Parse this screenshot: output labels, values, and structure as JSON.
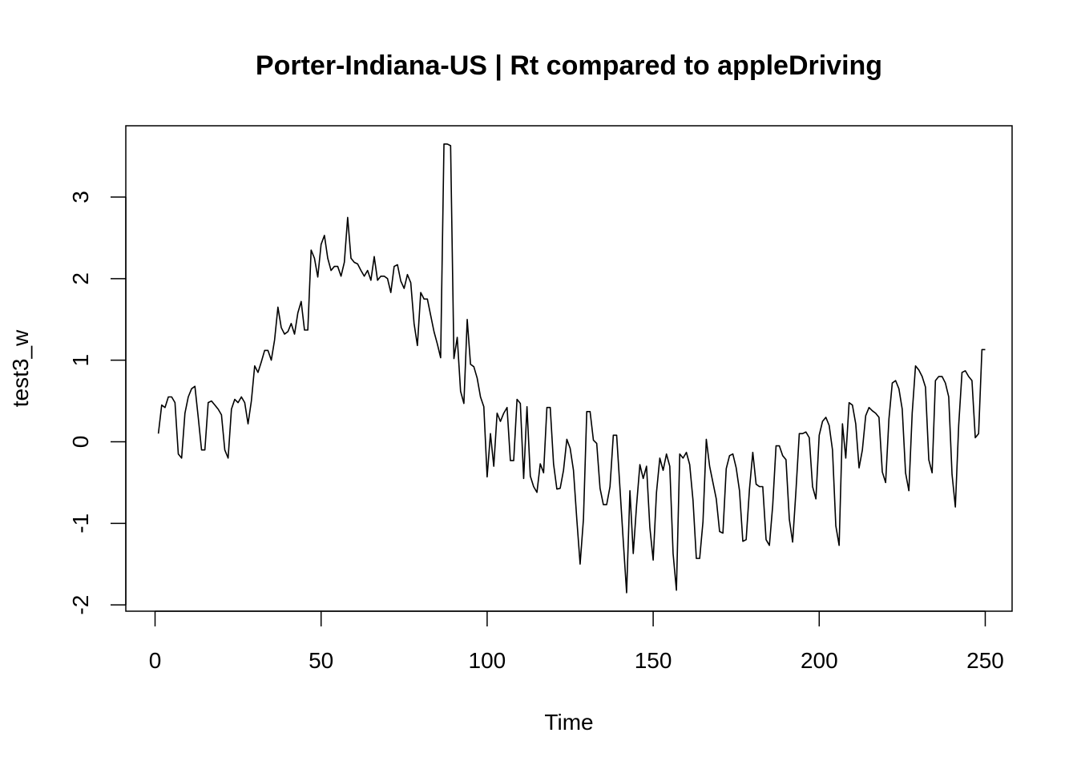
{
  "chart_data": {
    "type": "line",
    "title": "Porter-Indiana-US | Rt compared to appleDriving",
    "xlabel": "Time",
    "ylabel": "test3_w",
    "xlim": [
      1,
      248
    ],
    "ylim": [
      -1.85,
      3.65
    ],
    "x_ticks": [
      0,
      50,
      100,
      150,
      200,
      250
    ],
    "y_ticks": [
      -2,
      -1,
      0,
      1,
      2,
      3
    ],
    "grid": false,
    "legend": "none",
    "series": [
      {
        "color": "#000000",
        "x_start": 1,
        "x_step": 1,
        "values": [
          0.1,
          0.45,
          0.42,
          0.55,
          0.55,
          0.48,
          -0.15,
          -0.2,
          0.35,
          0.55,
          0.65,
          0.68,
          0.3,
          -0.1,
          -0.1,
          0.48,
          0.5,
          0.45,
          0.4,
          0.33,
          -0.1,
          -0.2,
          0.4,
          0.52,
          0.48,
          0.55,
          0.48,
          0.22,
          0.5,
          0.93,
          0.85,
          0.98,
          1.12,
          1.12,
          1.0,
          1.25,
          1.65,
          1.4,
          1.32,
          1.35,
          1.45,
          1.32,
          1.58,
          1.72,
          1.37,
          1.37,
          2.35,
          2.25,
          2.02,
          2.42,
          2.53,
          2.25,
          2.1,
          2.15,
          2.15,
          2.03,
          2.2,
          2.75,
          2.25,
          2.2,
          2.18,
          2.1,
          2.03,
          2.1,
          1.98,
          2.27,
          1.98,
          2.03,
          2.03,
          2.0,
          1.83,
          2.15,
          2.17,
          1.97,
          1.88,
          2.05,
          1.95,
          1.45,
          1.18,
          1.83,
          1.75,
          1.75,
          1.55,
          1.35,
          1.2,
          1.03,
          3.65,
          3.65,
          3.63,
          1.02,
          1.28,
          0.62,
          0.47,
          1.5,
          0.95,
          0.92,
          0.78,
          0.55,
          0.43,
          -0.43,
          0.1,
          -0.3,
          0.35,
          0.25,
          0.35,
          0.42,
          -0.23,
          -0.23,
          0.52,
          0.47,
          -0.45,
          0.43,
          -0.42,
          -0.55,
          -0.62,
          -0.27,
          -0.38,
          0.42,
          0.42,
          -0.27,
          -0.58,
          -0.57,
          -0.35,
          0.03,
          -0.08,
          -0.35,
          -0.95,
          -1.5,
          -0.95,
          0.37,
          0.37,
          0.02,
          -0.02,
          -0.57,
          -0.77,
          -0.77,
          -0.55,
          0.08,
          0.08,
          -0.57,
          -1.22,
          -1.85,
          -0.6,
          -1.37,
          -0.78,
          -0.28,
          -0.45,
          -0.3,
          -1.05,
          -1.45,
          -0.62,
          -0.2,
          -0.35,
          -0.15,
          -0.3,
          -1.37,
          -1.82,
          -0.15,
          -0.2,
          -0.13,
          -0.28,
          -0.72,
          -1.43,
          -1.43,
          -0.98,
          0.03,
          -0.3,
          -0.5,
          -0.7,
          -1.1,
          -1.12,
          -0.33,
          -0.17,
          -0.15,
          -0.32,
          -0.6,
          -1.22,
          -1.2,
          -0.58,
          -0.13,
          -0.52,
          -0.55,
          -0.55,
          -1.2,
          -1.27,
          -0.78,
          -0.05,
          -0.05,
          -0.17,
          -0.22,
          -0.95,
          -1.23,
          -0.6,
          0.1,
          0.1,
          0.12,
          0.05,
          -0.55,
          -0.7,
          0.08,
          0.25,
          0.3,
          0.2,
          -0.1,
          -1.03,
          -1.27,
          0.22,
          -0.2,
          0.48,
          0.45,
          0.22,
          -0.32,
          -0.1,
          0.32,
          0.42,
          0.38,
          0.35,
          0.3,
          -0.37,
          -0.5,
          0.28,
          0.72,
          0.75,
          0.65,
          0.4,
          -0.38,
          -0.6,
          0.35,
          0.93,
          0.88,
          0.8,
          0.67,
          -0.22,
          -0.38,
          0.75,
          0.8,
          0.8,
          0.72,
          0.55,
          -0.4,
          -0.8,
          0.2,
          0.85,
          0.87,
          0.8,
          0.75,
          0.05,
          0.1,
          1.13,
          1.13
        ]
      }
    ]
  }
}
